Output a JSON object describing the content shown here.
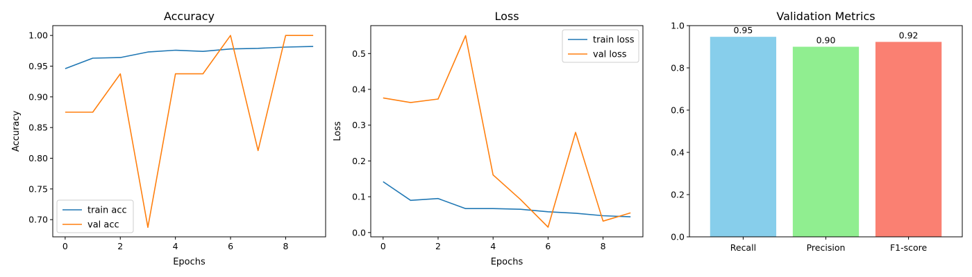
{
  "chart_data": [
    {
      "type": "line",
      "title": "Accuracy",
      "xlabel": "Epochs",
      "ylabel": "Accuracy",
      "xlim": [
        -0.45,
        9.45
      ],
      "ylim": [
        0.672,
        1.016
      ],
      "xticks": [
        0,
        2,
        4,
        6,
        8
      ],
      "yticks": [
        0.7,
        0.75,
        0.8,
        0.85,
        0.9,
        0.95,
        1.0
      ],
      "legend_position": "lower-left",
      "grid": false,
      "x": [
        0,
        1,
        2,
        3,
        4,
        5,
        6,
        7,
        8,
        9
      ],
      "series": [
        {
          "name": "train acc",
          "color": "#1f77b4",
          "values": [
            0.946,
            0.963,
            0.964,
            0.973,
            0.976,
            0.974,
            0.978,
            0.979,
            0.981,
            0.982
          ]
        },
        {
          "name": "val acc",
          "color": "#ff7f0e",
          "values": [
            0.875,
            0.875,
            0.9375,
            0.6875,
            0.9375,
            0.9375,
            1.0,
            0.8125,
            1.0,
            1.0
          ]
        }
      ]
    },
    {
      "type": "line",
      "title": "Loss",
      "xlabel": "Epochs",
      "ylabel": "Loss",
      "xlim": [
        -0.45,
        9.45
      ],
      "ylim": [
        -0.012,
        0.578
      ],
      "xticks": [
        0,
        2,
        4,
        6,
        8
      ],
      "yticks": [
        0.0,
        0.1,
        0.2,
        0.3,
        0.4,
        0.5
      ],
      "legend_position": "upper-right",
      "grid": false,
      "x": [
        0,
        1,
        2,
        3,
        4,
        5,
        6,
        7,
        8,
        9
      ],
      "series": [
        {
          "name": "train loss",
          "color": "#1f77b4",
          "values": [
            0.142,
            0.09,
            0.095,
            0.067,
            0.067,
            0.065,
            0.058,
            0.054,
            0.047,
            0.044
          ]
        },
        {
          "name": "val loss",
          "color": "#ff7f0e",
          "values": [
            0.376,
            0.363,
            0.373,
            0.55,
            0.161,
            0.092,
            0.015,
            0.28,
            0.032,
            0.055
          ]
        }
      ]
    },
    {
      "type": "bar",
      "title": "Validation Metrics",
      "categories": [
        "Recall",
        "Precision",
        "F1-score"
      ],
      "values": [
        0.947,
        0.9,
        0.923
      ],
      "labels": [
        "0.95",
        "0.90",
        "0.92"
      ],
      "colors": [
        "#87ceeb",
        "#90ee90",
        "#fa8072"
      ],
      "ylim": [
        0.0,
        1.0
      ],
      "yticks": [
        0.0,
        0.2,
        0.4,
        0.6,
        0.8,
        1.0
      ],
      "xlabel": "",
      "ylabel": "",
      "grid": false
    }
  ]
}
